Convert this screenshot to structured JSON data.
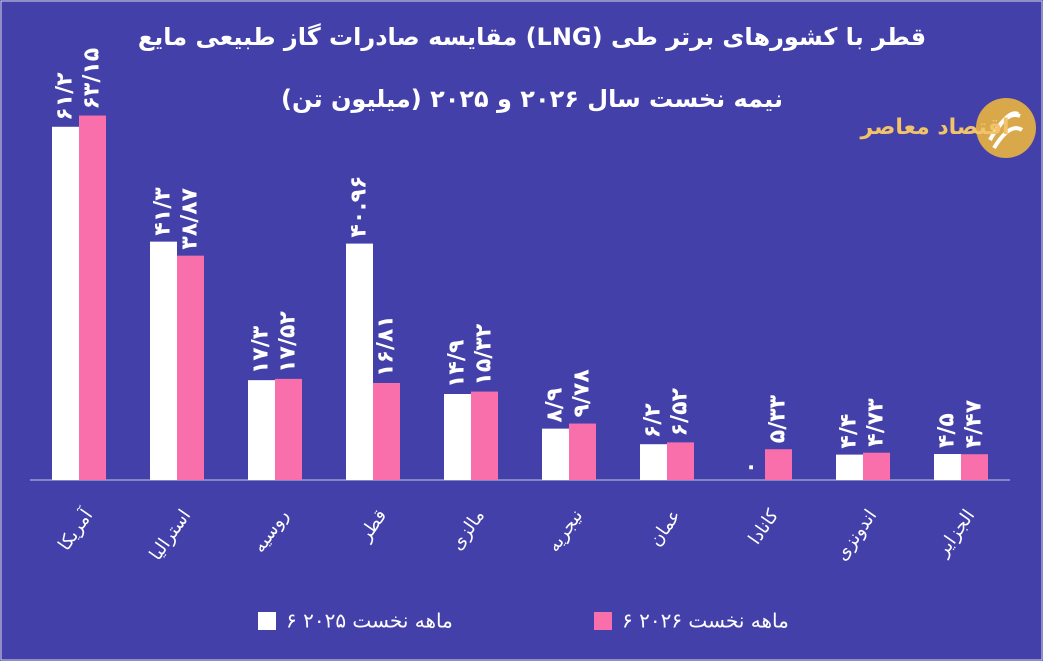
{
  "chart_data": {
    "type": "bar",
    "title": "مقایسه صادرات گاز طبیعی مایع (LNG) قطر با کشورهای برتر طی",
    "subtitle": "نیمه نخست سال ۲۰۲۶ و ۲۰۲۵ (میلیون تن)",
    "logo": "اقتصاد معاصر",
    "categories": [
      "آمریکا",
      "استرالیا",
      "روسیه",
      "قطر",
      "مالزی",
      "نیجریه",
      "عمان",
      "کانادا",
      "اندونزی",
      "الجزایر"
    ],
    "series": [
      {
        "name": "۶ ماهه نخست ۲۰۲۵",
        "color": "#ffffff",
        "values": [
          61.2,
          41.3,
          17.3,
          40.96,
          14.9,
          8.9,
          6.2,
          0,
          4.4,
          4.5
        ],
        "value_labels": [
          "۶۱/۲",
          "۴۱/۳",
          "۱۷/۳",
          "۴۰.۹۶",
          "۱۴/۹",
          "۸/۹",
          "۶/۲",
          "۰",
          "۴/۴",
          "۴/۵"
        ]
      },
      {
        "name": "۶ ماهه نخست ۲۰۲۶",
        "color": "#f86fac",
        "values": [
          63.15,
          38.87,
          17.52,
          16.81,
          15.32,
          9.78,
          6.52,
          5.33,
          4.73,
          4.47
        ],
        "value_labels": [
          "۶۳/۱۵",
          "۳۸/۸۷",
          "۱۷/۵۲",
          "۱۶/۸۱",
          "۱۵/۳۲",
          "۹/۷۸",
          "۶/۵۲",
          "۵/۳۳",
          "۴/۷۳",
          "۴/۴۷"
        ]
      }
    ],
    "ylim": [
      0,
      70
    ],
    "grid": false,
    "legend": "bottom"
  }
}
